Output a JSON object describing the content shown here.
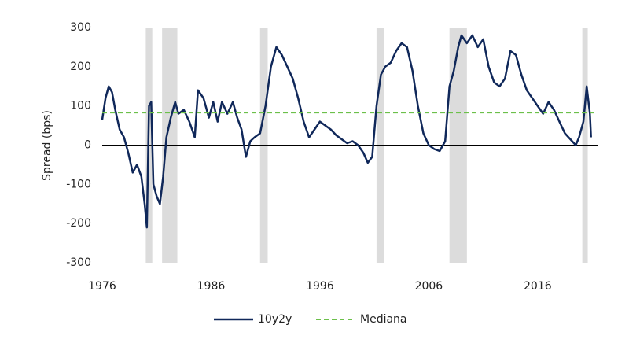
{
  "chart_data": {
    "type": "line",
    "y_label": "Spread (bps)",
    "x": [
      1976.0,
      1976.3,
      1976.6,
      1976.9,
      1977.2,
      1977.6,
      1978.0,
      1978.4,
      1978.8,
      1979.2,
      1979.6,
      1979.9,
      1980.1,
      1980.3,
      1980.5,
      1980.7,
      1981.0,
      1981.3,
      1981.6,
      1981.9,
      1982.3,
      1982.7,
      1983.0,
      1983.5,
      1984.0,
      1984.5,
      1984.8,
      1985.3,
      1985.8,
      1986.2,
      1986.6,
      1987.0,
      1987.5,
      1988.0,
      1988.4,
      1988.8,
      1989.2,
      1989.6,
      1990.0,
      1990.5,
      1991.0,
      1991.5,
      1992.0,
      1992.5,
      1993.0,
      1993.5,
      1994.0,
      1994.5,
      1995.0,
      1995.5,
      1996.0,
      1996.5,
      1997.0,
      1997.5,
      1998.0,
      1998.5,
      1999.0,
      1999.5,
      2000.0,
      2000.4,
      2000.8,
      2001.2,
      2001.6,
      2002.0,
      2002.5,
      2003.0,
      2003.5,
      2004.0,
      2004.5,
      2005.0,
      2005.5,
      2006.0,
      2006.5,
      2007.0,
      2007.5,
      2007.9,
      2008.3,
      2008.7,
      2009.0,
      2009.5,
      2010.0,
      2010.5,
      2011.0,
      2011.5,
      2012.0,
      2012.5,
      2013.0,
      2013.5,
      2014.0,
      2014.5,
      2015.0,
      2015.5,
      2016.0,
      2016.5,
      2017.0,
      2017.5,
      2018.0,
      2018.5,
      2019.0,
      2019.5,
      2019.8,
      2020.2,
      2020.5,
      2020.8,
      2020.9
    ],
    "series": [
      {
        "name": "10y2y",
        "color": "#10285a",
        "values": [
          65,
          120,
          150,
          135,
          90,
          40,
          20,
          -20,
          -70,
          -50,
          -80,
          -150,
          -210,
          100,
          110,
          -100,
          -130,
          -150,
          -80,
          20,
          70,
          110,
          80,
          90,
          60,
          20,
          140,
          120,
          70,
          110,
          60,
          110,
          80,
          110,
          70,
          40,
          -30,
          10,
          20,
          30,
          100,
          200,
          250,
          230,
          200,
          170,
          120,
          60,
          20,
          40,
          60,
          50,
          40,
          25,
          15,
          5,
          10,
          0,
          -20,
          -45,
          -30,
          100,
          180,
          200,
          210,
          240,
          260,
          250,
          190,
          100,
          30,
          0,
          -10,
          -15,
          10,
          150,
          190,
          250,
          280,
          260,
          280,
          250,
          270,
          200,
          160,
          150,
          170,
          240,
          230,
          180,
          140,
          120,
          100,
          80,
          110,
          90,
          60,
          30,
          15,
          0,
          20,
          60,
          150,
          80,
          20
        ]
      }
    ],
    "median": {
      "name": "Mediana",
      "value": 83,
      "color": "#6cc04a"
    },
    "recessions": [
      [
        1980.0,
        1980.6
      ],
      [
        1981.5,
        1982.9
      ],
      [
        1990.5,
        1991.2
      ],
      [
        2001.2,
        2001.9
      ],
      [
        2007.9,
        2009.5
      ],
      [
        2020.1,
        2020.6
      ]
    ],
    "recession_color": "#dcdcdc",
    "xlim": [
      1976,
      2021.5
    ],
    "xticks": [
      1976,
      1986,
      1996,
      2006,
      2016
    ],
    "ylim": [
      -300,
      300
    ],
    "yticks": [
      -300,
      -200,
      -100,
      0,
      100,
      200,
      300
    ],
    "legend": "bottom"
  }
}
